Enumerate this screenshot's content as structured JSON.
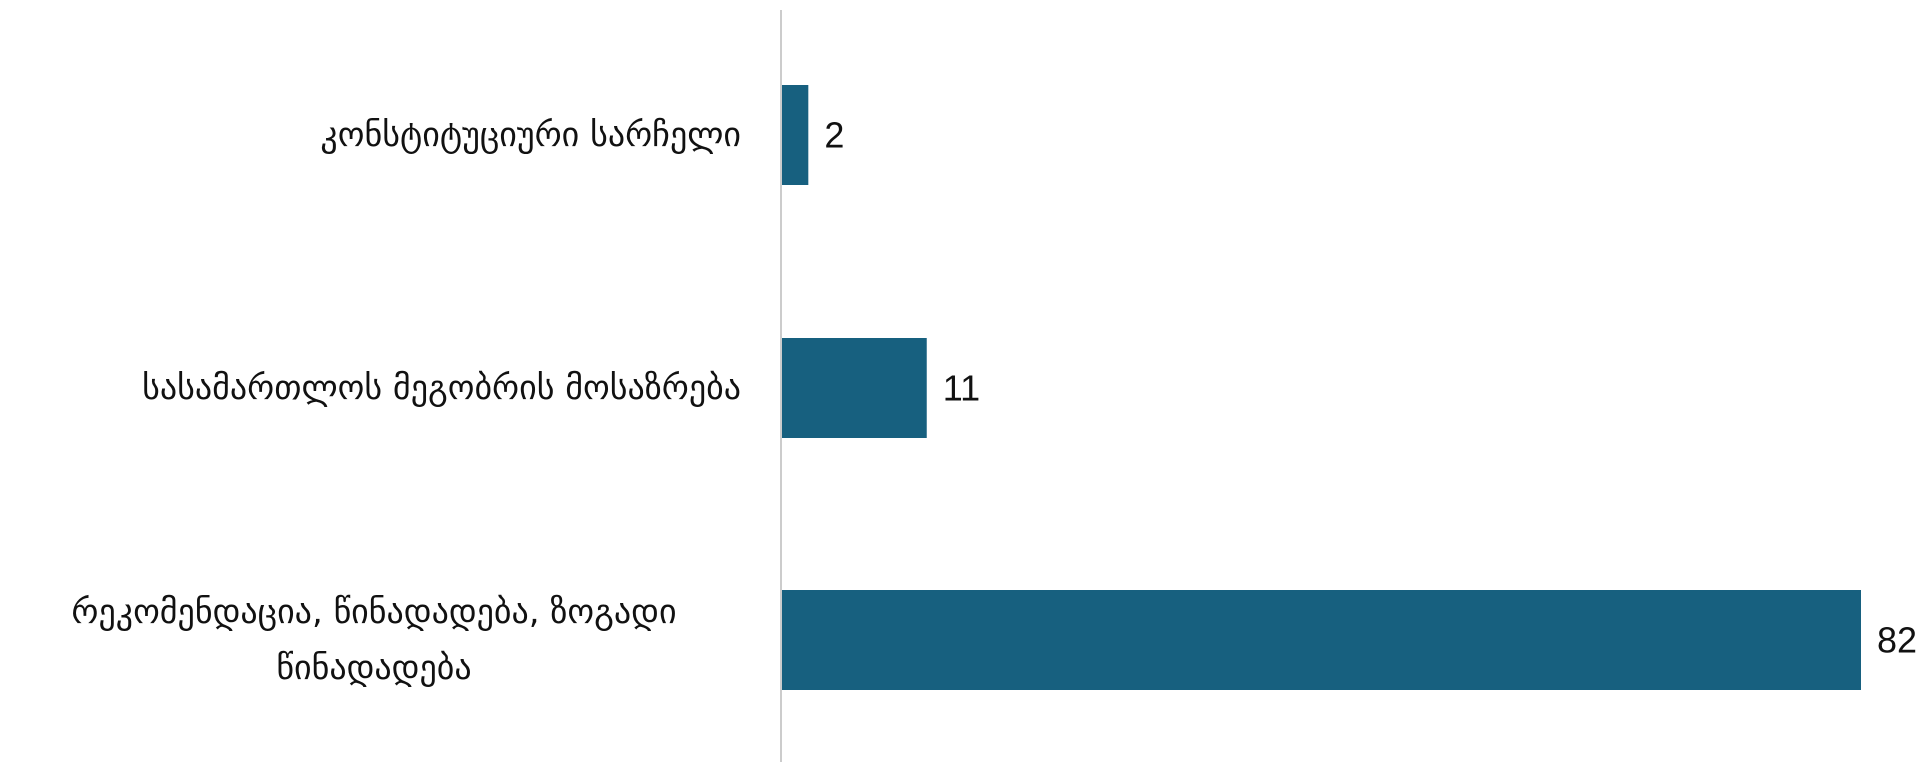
{
  "chart_data": {
    "type": "bar",
    "orientation": "horizontal",
    "categories": [
      "კონსტიტუციური სარჩელი",
      "სასამართლოს მეგობრის მოსაზრება",
      "რეკომენდაცია, წინადადება, ზოგადი წინადადება"
    ],
    "values": [
      2,
      11,
      82
    ],
    "title": "",
    "xlabel": "",
    "ylabel": "",
    "xlim": [
      0,
      82
    ],
    "grid": false,
    "legend": "none",
    "bar_color": "#17607f",
    "axis_color": "#cccccc",
    "data_labels": true
  }
}
